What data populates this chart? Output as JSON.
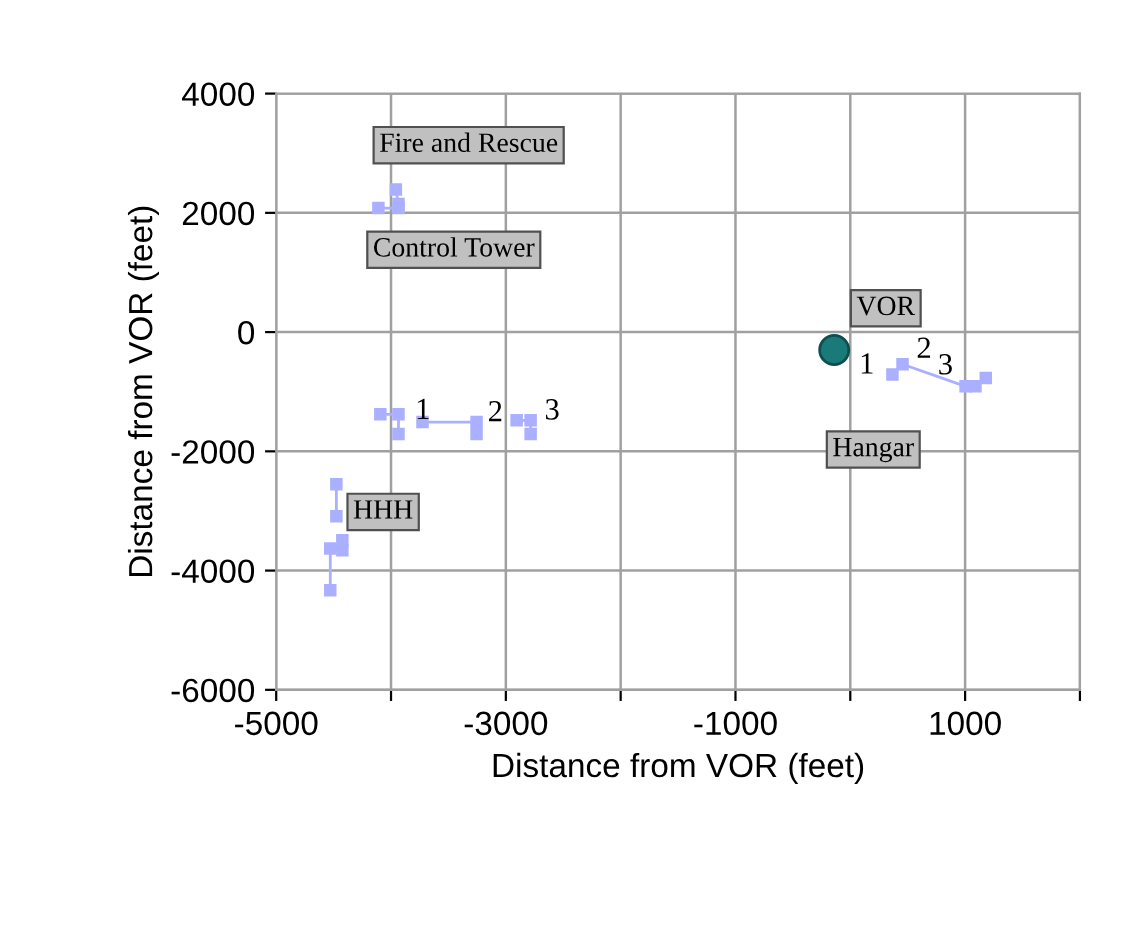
{
  "chart_data": {
    "type": "line",
    "xlabel": "Distance from VOR (feet)",
    "ylabel": "Distance from VOR (feet)",
    "xlim": [
      -5000,
      2000
    ],
    "ylim": [
      -6000,
      4000
    ],
    "xticks": [
      -5000,
      {
        "value": -4000,
        "label": null
      },
      -3000,
      {
        "value": -2000,
        "label": null
      },
      -1000,
      {
        "value": 0,
        "label": null
      },
      1000,
      {
        "value": 2000,
        "label": null
      }
    ],
    "yticks": [
      -6000,
      -4000,
      -2000,
      0,
      2000,
      4000
    ],
    "grid": true,
    "marker": "square",
    "line_style": "solid",
    "series": [
      {
        "color": "#aab0ff",
        "x": [
          -4110,
          -3935,
          -3935,
          -3958
        ],
        "values": [
          2080,
          2080,
          2150,
          2390
        ]
      },
      {
        "color": "#aab0ff",
        "x": [
          -4093,
          -3935,
          -3935
        ],
        "values": [
          -1380,
          -1380,
          -1710
        ]
      },
      {
        "color": "#aab0ff",
        "x": [
          -3726,
          -3255,
          -3255
        ],
        "values": [
          -1510,
          -1510,
          -1710
        ]
      },
      {
        "color": "#aab0ff",
        "x": [
          -2906,
          -2784,
          -2784
        ],
        "values": [
          -1480,
          -1480,
          -1710
        ]
      },
      {
        "color": "#aab0ff",
        "x": [
          -4476,
          -4476
        ],
        "values": [
          -2550,
          -3090
        ]
      },
      {
        "color": "#aab0ff",
        "x": [
          -4424,
          -4424,
          -4529,
          -4529
        ],
        "values": [
          -3490,
          -3660,
          -3630,
          -4330
        ]
      },
      {
        "color": "#aab0ff",
        "x": [
          367,
          455,
          1004,
          1090,
          1180
        ],
        "values": [
          -710,
          -540,
          -910,
          -910,
          -770
        ]
      },
      {
        "type": "scatter",
        "marker": "circle",
        "color": "#1a7a7a",
        "x": [
          -140
        ],
        "values": [
          -300
        ]
      }
    ],
    "annotations": [
      {
        "text": "Fire and Rescue",
        "x": -3958,
        "y": 2390
      },
      {
        "text": "Control Tower",
        "x": -4110,
        "y": 2080
      },
      {
        "text": "VOR",
        "x": -140,
        "y": -300
      },
      "Hangar",
      {
        "text": "HHH",
        "x": -4476,
        "y": -2550
      },
      {
        "text": "1",
        "x": -3935,
        "y": -1380
      },
      {
        "text": "2",
        "x": -3255,
        "y": -1510
      },
      {
        "text": "3",
        "x": -2784,
        "y": -1480
      },
      {
        "text": "1",
        "x": 367,
        "y": -710
      },
      {
        "text": "2",
        "x": 455,
        "y": -540
      },
      {
        "text": "3",
        "x": 1004,
        "y": -910
      }
    ]
  }
}
